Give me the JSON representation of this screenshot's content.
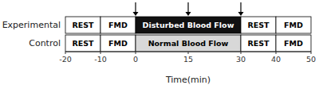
{
  "chart_data": {
    "type": "timeline",
    "xlabel": "Time(min)",
    "xlim": [
      -20,
      50
    ],
    "xticks": [
      -20,
      -10,
      0,
      15,
      30,
      40,
      50
    ],
    "rows": [
      {
        "name": "Experimental",
        "segments": [
          {
            "label": "REST",
            "start": -20,
            "end": -10,
            "color": "#ffffff"
          },
          {
            "label": "FMD",
            "start": -10,
            "end": 0,
            "color": "#ffffff"
          },
          {
            "label": "Disturbed Blood Flow",
            "start": 0,
            "end": 30,
            "color": "#111111"
          },
          {
            "label": "REST",
            "start": 30,
            "end": 40,
            "color": "#ffffff"
          },
          {
            "label": "FMD",
            "start": 40,
            "end": 50,
            "color": "#ffffff"
          }
        ]
      },
      {
        "name": "Control",
        "segments": [
          {
            "label": "REST",
            "start": -20,
            "end": -10,
            "color": "#ffffff"
          },
          {
            "label": "FMD",
            "start": -10,
            "end": 0,
            "color": "#ffffff"
          },
          {
            "label": "Normal Blood Flow",
            "start": 0,
            "end": 30,
            "color": "#d8d8d8"
          },
          {
            "label": "REST",
            "start": 30,
            "end": 40,
            "color": "#ffffff"
          },
          {
            "label": "FMD",
            "start": 40,
            "end": 50,
            "color": "#ffffff"
          }
        ]
      }
    ],
    "arrows": [
      0,
      15,
      30
    ]
  }
}
